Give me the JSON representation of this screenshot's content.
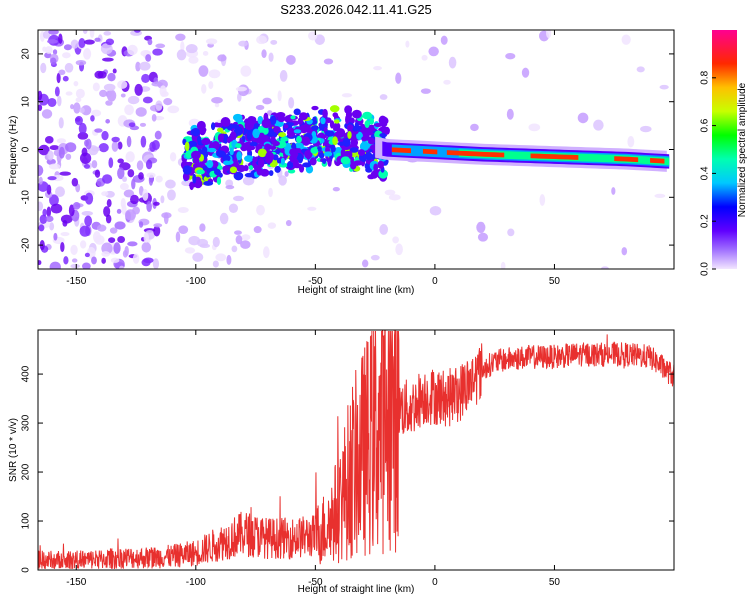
{
  "title": "S233.2026.042.11.41.G25",
  "chart_data": [
    {
      "type": "heatmap",
      "xlabel": "Height of straight line (km)",
      "ylabel": "Frequency (Hz)",
      "xlim": [
        -166,
        100
      ],
      "ylim": [
        -25,
        25
      ],
      "xticks": [
        -150,
        -100,
        -50,
        0,
        50
      ],
      "yticks": [
        -20,
        -10,
        0,
        10,
        20
      ],
      "colorbar": {
        "label": "Normalized spectral amplitude",
        "range": [
          0,
          1
        ],
        "ticks": [
          0.0,
          0.2,
          0.4,
          0.6,
          0.8
        ]
      },
      "ridge": [
        {
          "x": -100,
          "f": -1.5
        },
        {
          "x": -80,
          "f": 0.5
        },
        {
          "x": -60,
          "f": 2
        },
        {
          "x": -40,
          "f": 2
        },
        {
          "x": -20,
          "f": 0
        },
        {
          "x": 0,
          "f": -0.5
        },
        {
          "x": 20,
          "f": -1
        },
        {
          "x": 50,
          "f": -1.5
        },
        {
          "x": 80,
          "f": -2
        },
        {
          "x": 98,
          "f": -2.5
        }
      ]
    },
    {
      "type": "line",
      "xlabel": "Height of straight line (km)",
      "ylabel": "SNR (10 * v/v)",
      "xlim": [
        -166,
        100
      ],
      "ylim": [
        0,
        490
      ],
      "xticks": [
        -150,
        -100,
        -50,
        0,
        50
      ],
      "yticks": [
        0,
        100,
        200,
        300,
        400
      ],
      "series": [
        {
          "name": "SNR",
          "color": "#e8302e",
          "x": [
            -166,
            -150,
            -140,
            -130,
            -120,
            -110,
            -100,
            -90,
            -80,
            -70,
            -60,
            -50,
            -45,
            -40,
            -35,
            -30,
            -25,
            -20,
            -15,
            -10,
            -5,
            0,
            5,
            10,
            15,
            20,
            25,
            30,
            40,
            50,
            60,
            70,
            80,
            90,
            100
          ],
          "values": [
            20,
            20,
            22,
            25,
            25,
            28,
            35,
            55,
            75,
            65,
            65,
            70,
            90,
            130,
            200,
            240,
            280,
            310,
            330,
            330,
            355,
            355,
            350,
            360,
            385,
            410,
            425,
            430,
            435,
            435,
            440,
            440,
            440,
            435,
            395
          ]
        }
      ]
    }
  ]
}
